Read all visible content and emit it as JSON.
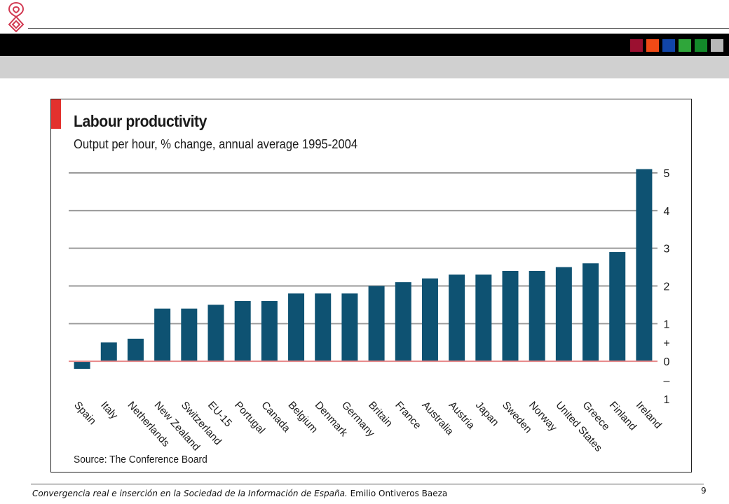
{
  "header": {
    "color_squares": [
      "#9b1030",
      "#f04a16",
      "#1145a8",
      "#2fa63a",
      "#138a2a",
      "#b8b8b8"
    ]
  },
  "chart_data": {
    "type": "bar",
    "title": "Labour productivity",
    "subtitle": "Output per hour, % change, annual average 1995-2004",
    "source": "Source: The Conference Board",
    "categories": [
      "Spain",
      "Italy",
      "Netherlands",
      "New Zealand",
      "Switzerland",
      "EU-15",
      "Portugal",
      "Canada",
      "Belgium",
      "Denmark",
      "Germany",
      "Britain",
      "France",
      "Australia",
      "Austria",
      "Japan",
      "Sweden",
      "Norway",
      "United States",
      "Greece",
      "Finland",
      "Ireland"
    ],
    "values": [
      -0.2,
      0.5,
      0.6,
      1.4,
      1.4,
      1.5,
      1.6,
      1.6,
      1.8,
      1.8,
      1.8,
      2.0,
      2.1,
      2.2,
      2.3,
      2.3,
      2.4,
      2.4,
      2.5,
      2.6,
      2.9,
      5.1
    ],
    "ylim": [
      -1,
      5
    ],
    "y_ticks": [
      {
        "value": 5,
        "label": "5"
      },
      {
        "value": 4,
        "label": "4"
      },
      {
        "value": 3,
        "label": "3"
      },
      {
        "value": 2,
        "label": "2"
      },
      {
        "value": 1,
        "label": "1"
      },
      {
        "value": 0.5,
        "label": "+"
      },
      {
        "value": 0,
        "label": "0"
      },
      {
        "value": -0.5,
        "label": "–"
      },
      {
        "value": -1,
        "label": "1"
      }
    ],
    "gridlines": [
      5,
      4,
      3,
      2,
      1
    ],
    "zero_line_color": "#e8898a",
    "bar_color": "#0e5272",
    "grid": true,
    "axis_side": "right"
  },
  "footer": {
    "citation": "Convergencia real e inserción en la Sociedad de la Información de España.",
    "author": " Emilio Ontiveros Baeza",
    "page_number": "9"
  }
}
